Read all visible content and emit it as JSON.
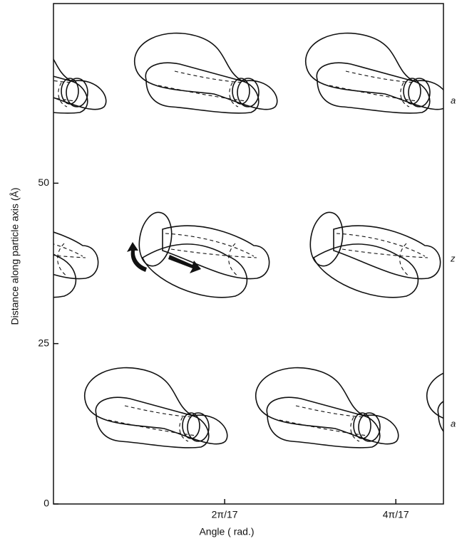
{
  "axes": {
    "y_label": "Distance along particle axis (Å)",
    "x_label": "Angle ( rad.)",
    "ylim": [
      0,
      78
    ],
    "yticks": [
      0,
      25,
      50
    ],
    "xlim": [
      0,
      0.842
    ],
    "xticks": [
      {
        "value": 0.3696,
        "label": "2π/17"
      },
      {
        "value": 0.7392,
        "label": "4π/17"
      }
    ]
  },
  "side_labels": [
    "a",
    "z",
    "a"
  ]
}
